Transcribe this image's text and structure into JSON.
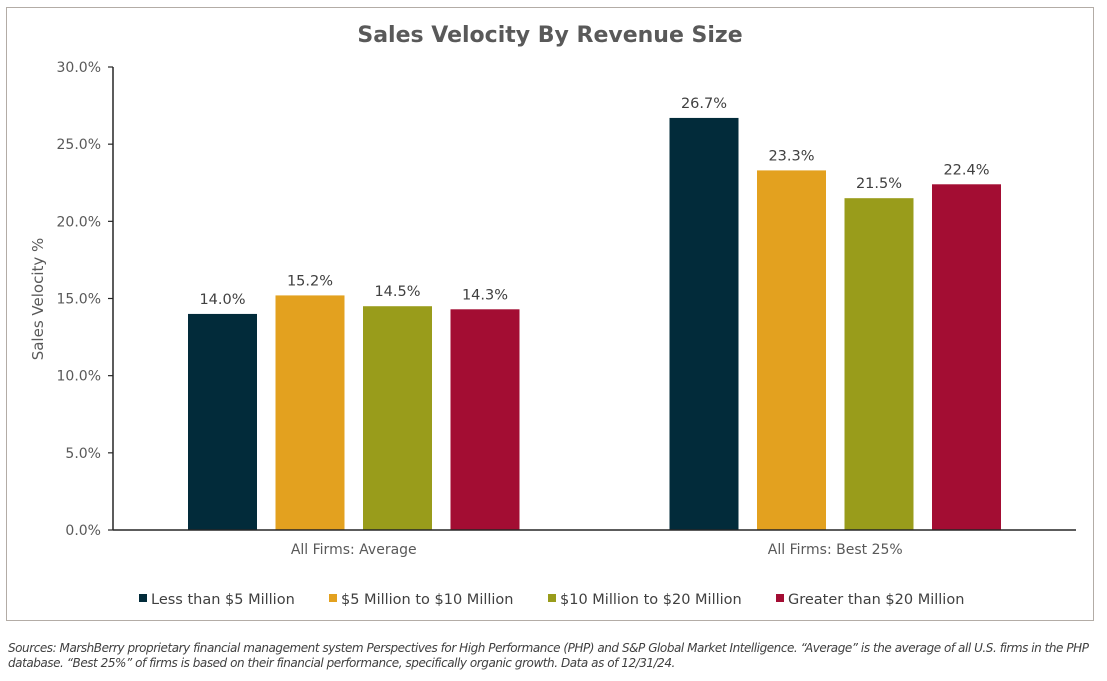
{
  "chart_data": {
    "type": "bar",
    "title": "Sales Velocity By Revenue Size",
    "xlabel": "",
    "ylabel": "Sales Velocity %",
    "ylim": [
      0,
      30
    ],
    "yticks": [
      0,
      5,
      10,
      15,
      20,
      25,
      30
    ],
    "ytick_labels": [
      "0.0%",
      "5.0%",
      "10.0%",
      "15.0%",
      "20.0%",
      "25.0%",
      "30.0%"
    ],
    "grid": false,
    "legend_position": "bottom",
    "categories": [
      "All Firms: Average",
      "All Firms: Best 25%"
    ],
    "series": [
      {
        "name": "Less than $5 Million",
        "color": "#022b3a",
        "values": [
          14.0,
          26.7
        ],
        "labels": [
          "14.0%",
          "26.7%"
        ]
      },
      {
        "name": "$5 Million to $10 Million",
        "color": "#e3a11f",
        "values": [
          15.2,
          23.3
        ],
        "labels": [
          "15.2%",
          "23.3%"
        ]
      },
      {
        "name": "$10 Million to $20 Million",
        "color": "#999c1b",
        "values": [
          14.5,
          21.5
        ],
        "labels": [
          "14.5%",
          "21.5%"
        ]
      },
      {
        "name": "Greater than $20 Million",
        "color": "#a30d33",
        "values": [
          14.3,
          22.4
        ],
        "labels": [
          "14.3%",
          "22.4%"
        ]
      }
    ]
  },
  "footnote": "Sources: MarshBerry proprietary financial management system Perspectives for High Performance (PHP) and S&P Global Market Intelligence. “Average” is the average of all U.S. firms in the PHP database. “Best 25%” of firms is based on their financial performance, specifically organic growth. Data as of 12/31/24."
}
